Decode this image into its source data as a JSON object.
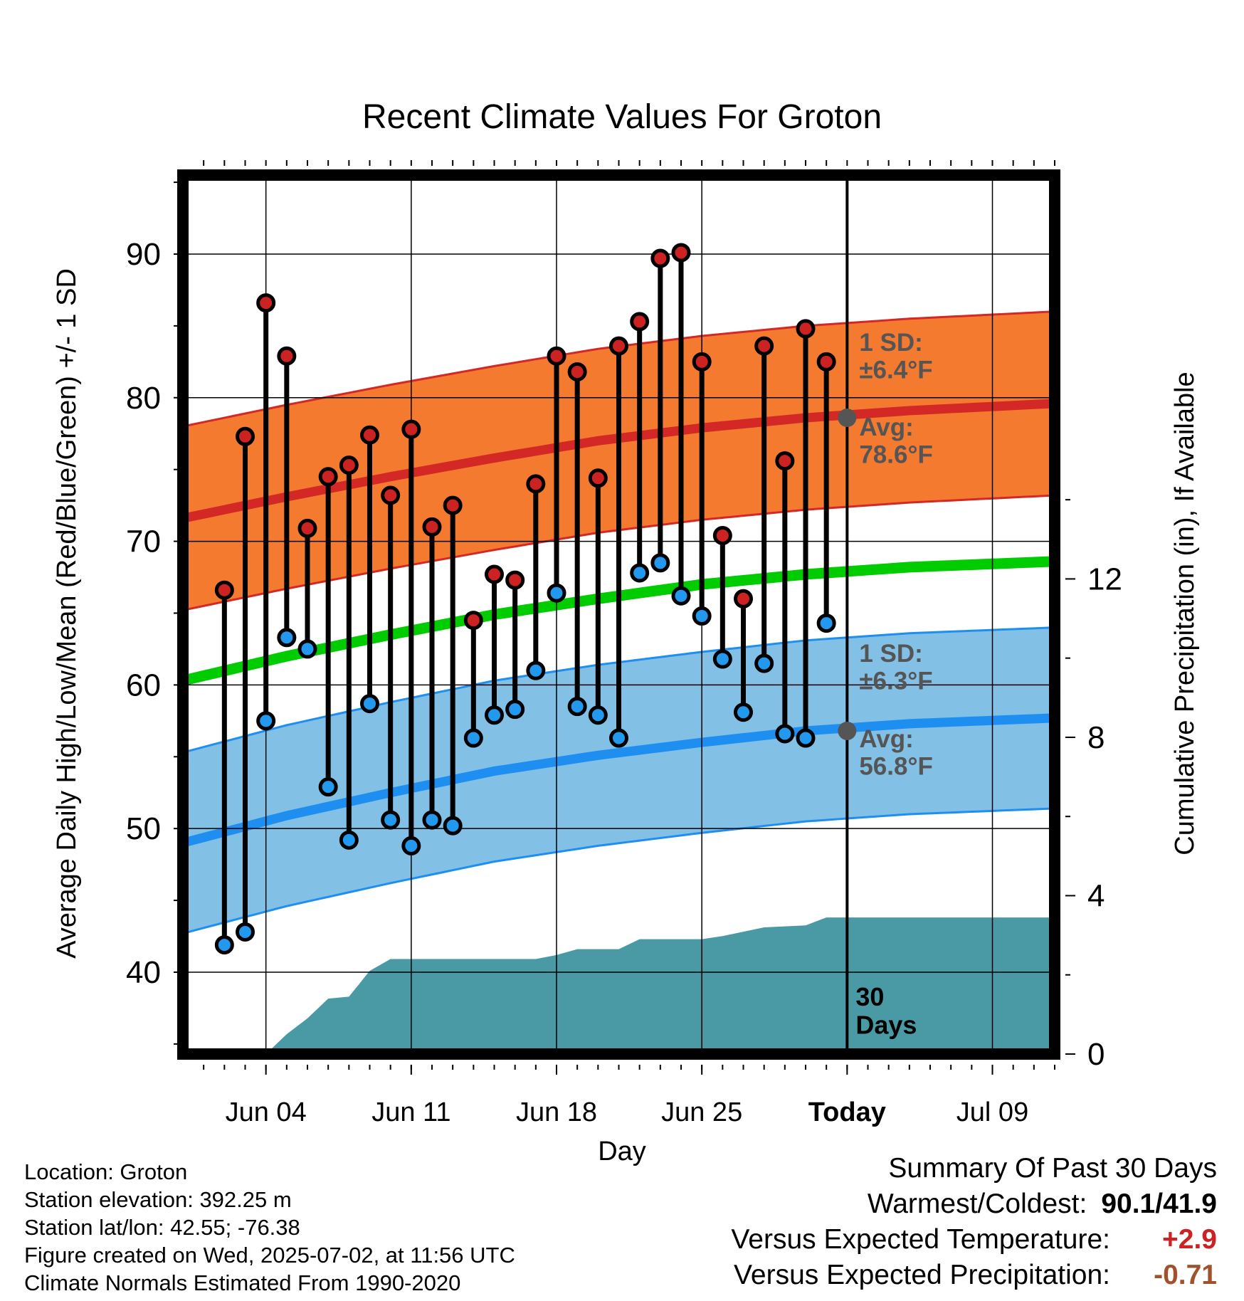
{
  "chart_data": {
    "type": "line",
    "title": "Recent Climate Values For Groton",
    "xlabel": "Day",
    "ylabel": "Average Daily High/Low/Mean (Red/Blue/Green) +/- 1 SD",
    "y2label": "Cumulative Precipitation (in), If Available",
    "x_tick_labels": [
      "Jun 04",
      "Jun 11",
      "Jun 18",
      "Jun 25",
      "Today",
      "Jul 09"
    ],
    "y_ticks": [
      40,
      50,
      60,
      70,
      80,
      90
    ],
    "y2_ticks": [
      0,
      4,
      8,
      12
    ],
    "ylim": [
      34.3,
      95.5
    ],
    "y2lim": [
      0,
      22.2
    ],
    "x_range": [
      "2025-05-31",
      "2025-07-12"
    ],
    "grid": true,
    "today": "2025-07-02",
    "window_label": [
      "30",
      "Days"
    ],
    "daily": {
      "dates": [
        "2025-06-02",
        "2025-06-03",
        "2025-06-04",
        "2025-06-05",
        "2025-06-06",
        "2025-06-07",
        "2025-06-08",
        "2025-06-09",
        "2025-06-10",
        "2025-06-11",
        "2025-06-12",
        "2025-06-13",
        "2025-06-14",
        "2025-06-15",
        "2025-06-16",
        "2025-06-17",
        "2025-06-18",
        "2025-06-19",
        "2025-06-20",
        "2025-06-21",
        "2025-06-22",
        "2025-06-23",
        "2025-06-24",
        "2025-06-25",
        "2025-06-26",
        "2025-06-27",
        "2025-06-28",
        "2025-06-29",
        "2025-06-30",
        "2025-07-01"
      ],
      "high": [
        66.6,
        77.3,
        86.6,
        82.9,
        70.9,
        74.5,
        75.3,
        77.4,
        73.2,
        77.8,
        71.0,
        72.5,
        64.5,
        67.7,
        67.3,
        74.0,
        82.9,
        81.8,
        74.4,
        83.6,
        85.3,
        89.7,
        90.1,
        82.5,
        70.4,
        66.0,
        83.6,
        75.6,
        84.8,
        82.5
      ],
      "low": [
        41.9,
        42.8,
        57.5,
        63.3,
        62.5,
        52.9,
        49.2,
        58.7,
        50.6,
        48.8,
        50.6,
        50.2,
        56.3,
        57.9,
        58.3,
        61.0,
        66.4,
        58.5,
        57.9,
        56.3,
        67.8,
        68.5,
        66.2,
        64.8,
        61.8,
        58.1,
        61.5,
        56.6,
        56.3,
        64.3
      ]
    },
    "normals": {
      "dates": [
        "2025-05-31",
        "2025-06-05",
        "2025-06-10",
        "2025-06-15",
        "2025-06-20",
        "2025-06-25",
        "2025-06-30",
        "2025-07-05",
        "2025-07-12"
      ],
      "avg_high": [
        71.6,
        73.1,
        74.5,
        75.8,
        77.0,
        77.9,
        78.6,
        79.1,
        79.6
      ],
      "avg_low": [
        49.0,
        50.9,
        52.5,
        54.0,
        55.1,
        56.0,
        56.8,
        57.3,
        57.7
      ],
      "avg_mean": [
        60.3,
        62.0,
        63.5,
        64.9,
        66.0,
        67.0,
        67.7,
        68.2,
        68.6
      ],
      "high_sd": 6.4,
      "low_sd": 6.3
    },
    "precip": {
      "dates": [
        "2025-06-04",
        "2025-06-05",
        "2025-06-06",
        "2025-06-07",
        "2025-06-08",
        "2025-06-09",
        "2025-06-10",
        "2025-06-11",
        "2025-06-17",
        "2025-06-18",
        "2025-06-19",
        "2025-06-21",
        "2025-06-22",
        "2025-06-25",
        "2025-06-26",
        "2025-06-28",
        "2025-06-30",
        "2025-07-01",
        "2025-07-12"
      ],
      "cumulative": [
        0.0,
        0.5,
        0.9,
        1.4,
        1.45,
        2.1,
        2.4,
        2.4,
        2.4,
        2.5,
        2.65,
        2.65,
        2.9,
        2.9,
        2.98,
        3.2,
        3.25,
        3.45,
        3.45
      ]
    },
    "annotations": {
      "high_sd_label": [
        "1 SD:",
        "±6.4°F"
      ],
      "high_avg_label": [
        "Avg:",
        "78.6°F"
      ],
      "low_sd_label": [
        "1 SD:",
        "±6.3°F"
      ],
      "low_avg_label": [
        "Avg:",
        "56.8°F"
      ],
      "high_avg_today": 78.6,
      "low_avg_today": 56.8
    },
    "colors": {
      "high_band": "#f47a30",
      "high_line": "#d42826",
      "low_band": "#82c0e6",
      "low_line": "#1e8ff0",
      "mean_line": "#00cc00",
      "precip": "#4a9aa5",
      "high_marker": "#cc2222",
      "low_marker": "#2299ee",
      "today_marker": "#555555",
      "annotation_text": "#555555"
    }
  },
  "footer": {
    "location": "Location: Groton",
    "elevation": "Station elevation: 392.25 m",
    "latlon": "Station lat/lon: 42.55; -76.38",
    "created": "Figure created on Wed, 2025-07-02, at 11:56 UTC",
    "normals": "Climate Normals Estimated From 1990-2020"
  },
  "summary": {
    "title": "Summary Of Past 30 Days",
    "warm_cold_label": "Warmest/Coldest:",
    "warm_cold_value": "90.1/41.9",
    "temp_label": "Versus Expected Temperature:",
    "temp_value": "+2.9",
    "temp_color": "#cc2222",
    "precip_label": "Versus Expected Precipitation:",
    "precip_value": "-0.71",
    "precip_color": "#a0522d"
  }
}
